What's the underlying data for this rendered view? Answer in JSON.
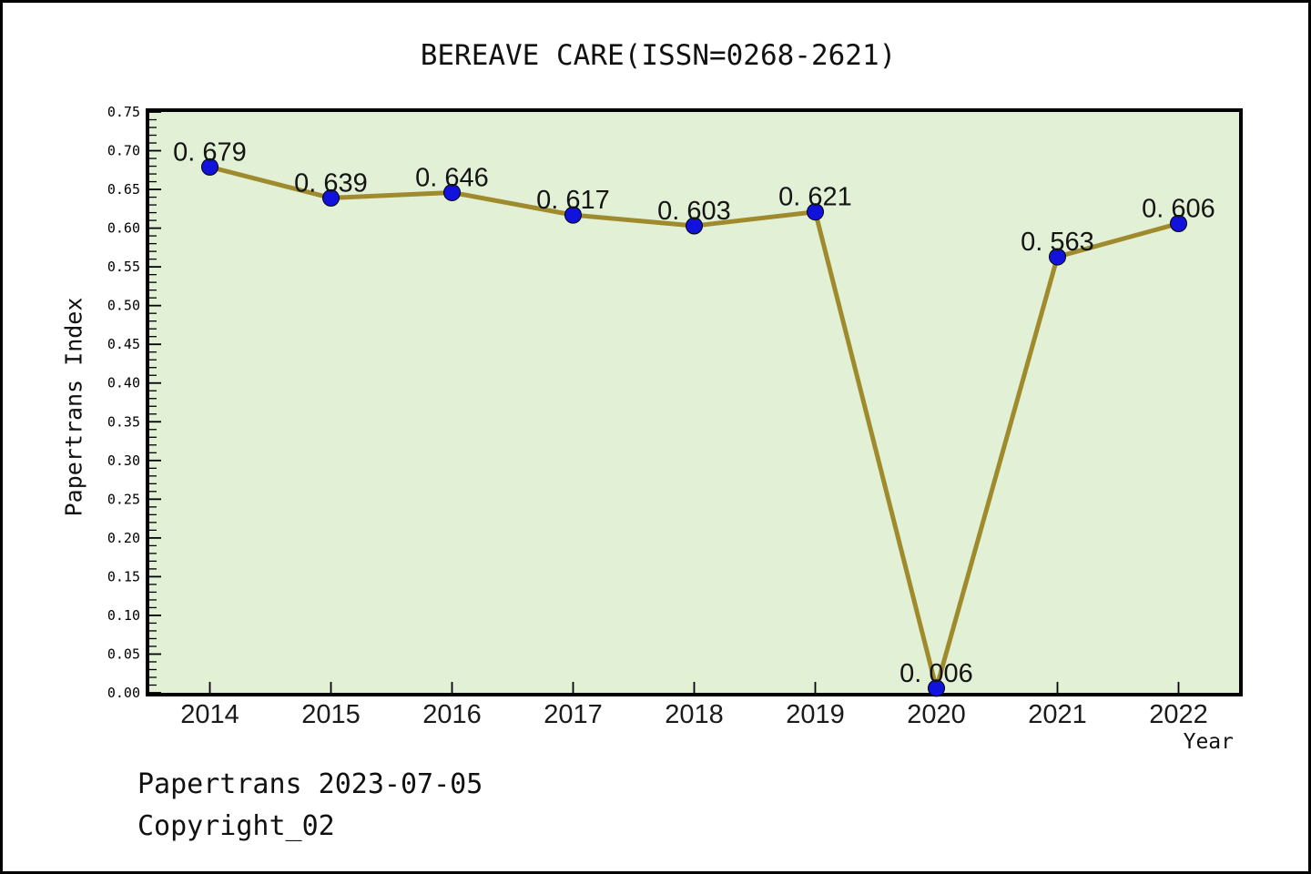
{
  "title": "BEREAVE CARE(ISSN=0268-2621)",
  "footer": {
    "line1": "Papertrans 2023-07-05",
    "line2": "Copyright_02"
  },
  "chart_data": {
    "type": "line",
    "title": "BEREAVE CARE(ISSN=0268-2621)",
    "xlabel": "Year",
    "ylabel": "Papertrans Index",
    "x": [
      2014,
      2015,
      2016,
      2017,
      2018,
      2019,
      2020,
      2021,
      2022
    ],
    "values": [
      0.679,
      0.639,
      0.646,
      0.617,
      0.603,
      0.621,
      0.006,
      0.563,
      0.606
    ],
    "point_labels": [
      "0. 679",
      "0. 639",
      "0. 646",
      "0. 617",
      "0. 603",
      "0. 621",
      "0. 006",
      "0. 563",
      "0. 606"
    ],
    "xlim": [
      2013.5,
      2022.5
    ],
    "ylim": [
      0,
      0.75
    ],
    "y_major_step": 0.05,
    "y_minor_step": 0.01,
    "y_tick_decimals": 2,
    "grid": false,
    "legend": null,
    "colors": {
      "plot_bg": "#e2f0d5",
      "line": "#9f8b2e",
      "marker": "#1212dd",
      "marker_edge": "#000000",
      "frame": "#000000",
      "text": "#141414"
    }
  }
}
